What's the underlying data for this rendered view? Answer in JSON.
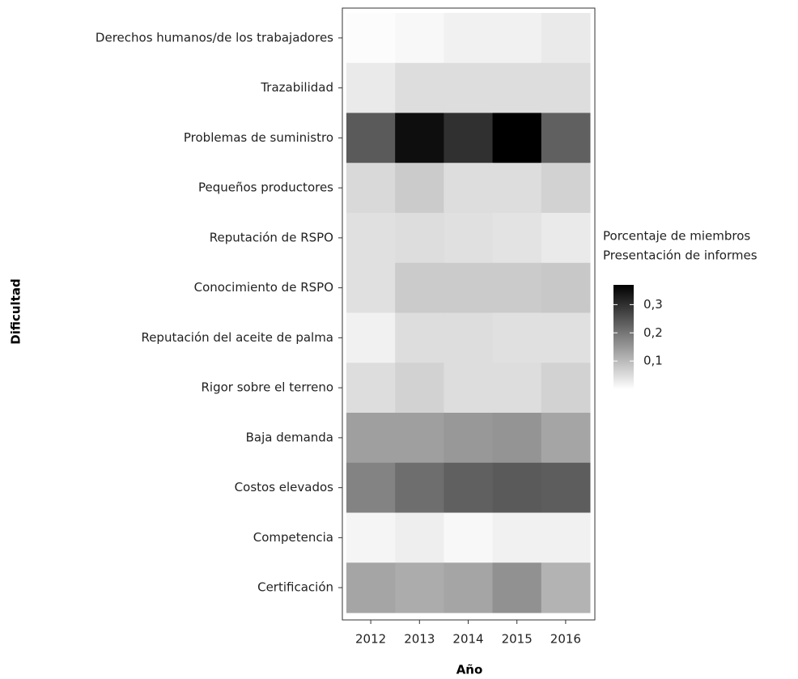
{
  "chart_data": {
    "type": "heatmap",
    "x_label": "Año",
    "y_label": "Dificultad",
    "x_categories": [
      "2012",
      "2013",
      "2014",
      "2015",
      "2016"
    ],
    "y_categories": [
      "Derechos humanos/de los trabajadores",
      "Trazabilidad",
      "Problemas de suministro",
      "Pequeños productores",
      "Reputación de RSPO",
      "Conocimiento de RSPO",
      "Reputación del aceite de palma",
      "Rigor sobre el terreno",
      "Baja demanda",
      "Costos elevados",
      "Competencia",
      "Certificación"
    ],
    "values": [
      [
        0.005,
        0.01,
        0.02,
        0.02,
        0.03
      ],
      [
        0.03,
        0.05,
        0.05,
        0.05,
        0.05
      ],
      [
        0.24,
        0.35,
        0.3,
        0.37,
        0.23
      ],
      [
        0.055,
        0.075,
        0.05,
        0.05,
        0.065
      ],
      [
        0.045,
        0.05,
        0.045,
        0.04,
        0.03
      ],
      [
        0.045,
        0.075,
        0.075,
        0.075,
        0.08
      ],
      [
        0.02,
        0.05,
        0.05,
        0.045,
        0.045
      ],
      [
        0.05,
        0.065,
        0.05,
        0.05,
        0.065
      ],
      [
        0.14,
        0.14,
        0.15,
        0.155,
        0.13
      ],
      [
        0.18,
        0.21,
        0.23,
        0.24,
        0.235
      ],
      [
        0.015,
        0.025,
        0.01,
        0.02,
        0.02
      ],
      [
        0.13,
        0.12,
        0.13,
        0.16,
        0.11
      ]
    ],
    "legend_title": [
      "Porcentaje de miembros",
      "Presentación de informes"
    ],
    "color_low": "#ffffff",
    "color_high": "#000000",
    "clim": [
      0,
      0.37
    ],
    "cticks": [
      {
        "value": 0.1,
        "label": "0,1"
      },
      {
        "value": 0.2,
        "label": "0,2"
      },
      {
        "value": 0.3,
        "label": "0,3"
      }
    ]
  }
}
